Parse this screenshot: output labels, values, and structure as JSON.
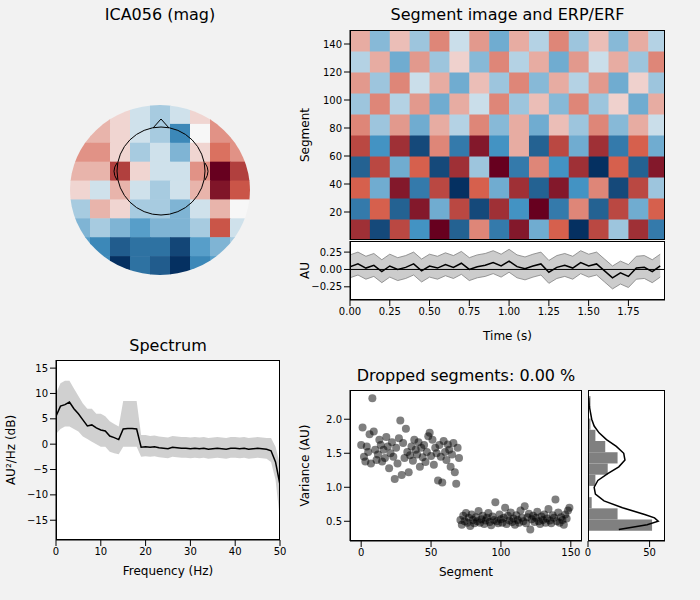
{
  "chart_data": [
    {
      "type": "heatmap",
      "title": "ICA056 (mag)",
      "tick_labels": false,
      "cells": [
        [
          0.1,
          0.2,
          0.1,
          -0.1,
          -0.2,
          -0.1,
          0.1,
          0.3,
          0.2
        ],
        [
          0.2,
          0.2,
          0.1,
          -0.1,
          -0.2,
          -0.5,
          0,
          0.3,
          0.3
        ],
        [
          0.3,
          0.3,
          0.1,
          -0.2,
          -0.1,
          -0.3,
          0.1,
          0.4,
          0.3
        ],
        [
          0.2,
          0.2,
          0.6,
          0.1,
          -0.1,
          -0.1,
          0.3,
          0.9,
          0.6
        ],
        [
          0.1,
          -0.1,
          0.2,
          -0.1,
          -0.2,
          -0.1,
          0.2,
          0.8,
          0.5
        ],
        [
          -0.2,
          0.2,
          0.1,
          -0.2,
          -0.2,
          -0.3,
          -0.1,
          0.2,
          0
        ],
        [
          -0.3,
          -0.2,
          -0.3,
          -0.4,
          -0.3,
          -0.3,
          -0.2,
          0.5,
          -0.1
        ],
        [
          -0.4,
          -0.5,
          -0.7,
          -0.6,
          -0.6,
          -0.8,
          -0.4,
          -0.3,
          -0.2
        ],
        [
          -0.3,
          -0.5,
          -0.9,
          -0.6,
          -0.7,
          -0.9,
          -0.5,
          -0.4,
          -0.2
        ]
      ]
    },
    {
      "type": "heatmap",
      "title": "Segment image and ERP/ERF",
      "ylabel": "Segment",
      "tick_labels": "y",
      "x": [
        0.0625,
        0.1875,
        0.3125,
        0.4375,
        0.5625,
        0.6875,
        0.8125,
        0.9375,
        1.0625,
        1.1875,
        1.3125,
        1.4375,
        1.5625,
        1.6875,
        1.8125,
        1.9375
      ],
      "y": [
        7.5,
        22.5,
        37.5,
        52.5,
        67.5,
        82.5,
        97.5,
        112.5,
        127.5,
        142.5
      ],
      "cells": [
        [
          0.6,
          -0.7,
          0.5,
          -0.4,
          0.8,
          -0.6,
          0.3,
          -0.5,
          0.7,
          -0.3,
          0.4,
          -0.8,
          0.5,
          -0.2,
          0.6,
          -0.5
        ],
        [
          -0.5,
          0.4,
          -0.6,
          0.7,
          -0.3,
          0.5,
          -0.7,
          0.6,
          -0.4,
          0.8,
          -0.5,
          0.3,
          -0.6,
          0.5,
          -0.3,
          0.4
        ],
        [
          0.4,
          -0.3,
          0.7,
          -0.5,
          0.5,
          -0.8,
          0.4,
          -0.3,
          0.6,
          -0.6,
          0.7,
          -0.4,
          0.3,
          -0.7,
          0.5,
          -0.2
        ],
        [
          -0.6,
          0.5,
          -0.3,
          0.4,
          -0.7,
          0.6,
          -0.2,
          0.8,
          -0.5,
          0.3,
          -0.4,
          0.6,
          -0.8,
          0.4,
          -0.6,
          0.7
        ],
        [
          0.5,
          -0.4,
          0.6,
          -0.7,
          0.3,
          -0.5,
          0.7,
          -0.4,
          0.2,
          -0.6,
          0.5,
          -0.3,
          0.6,
          -0.5,
          0.4,
          -0.3
        ],
        [
          0.3,
          -0.2,
          0.25,
          -0.3,
          0.2,
          -0.15,
          0.3,
          -0.25,
          0.2,
          -0.3,
          0.15,
          -0.2,
          0.3,
          -0.25,
          0.2,
          -0.1
        ],
        [
          -0.2,
          0.3,
          -0.15,
          0.25,
          -0.3,
          0.2,
          -0.1,
          0.3,
          -0.2,
          0.15,
          -0.25,
          0.3,
          -0.2,
          0.1,
          -0.3,
          0.2
        ],
        [
          0.25,
          -0.2,
          0.3,
          -0.1,
          0.2,
          -0.3,
          0.15,
          -0.2,
          0.3,
          -0.25,
          0.2,
          -0.15,
          0.25,
          -0.3,
          0.1,
          -0.2
        ],
        [
          -0.15,
          0.2,
          -0.3,
          0.25,
          -0.2,
          0.1,
          -0.25,
          0.3,
          -0.15,
          0.2,
          -0.3,
          0.25,
          -0.1,
          0.2,
          -0.2,
          0.3
        ],
        [
          0.2,
          -0.25,
          0.15,
          -0.2,
          0.3,
          -0.1,
          0.25,
          -0.3,
          0.2,
          -0.15,
          0.3,
          -0.2,
          0.15,
          -0.25,
          0.2,
          -0.15
        ]
      ],
      "xlim": [
        0,
        1.98
      ],
      "ylim": [
        0,
        150
      ],
      "yticks": [
        20,
        40,
        60,
        80,
        100,
        120,
        140
      ]
    },
    {
      "type": "line",
      "xlabel": "Time (s)",
      "ylabel": "AU",
      "color": "#000000",
      "x": [
        0,
        0.05,
        0.1,
        0.15,
        0.2,
        0.25,
        0.3,
        0.35,
        0.4,
        0.45,
        0.5,
        0.55,
        0.6,
        0.65,
        0.7,
        0.75,
        0.8,
        0.85,
        0.9,
        0.95,
        1.0,
        1.05,
        1.1,
        1.15,
        1.2,
        1.25,
        1.3,
        1.35,
        1.4,
        1.45,
        1.5,
        1.55,
        1.6,
        1.65,
        1.7,
        1.75,
        1.8,
        1.85,
        1.9,
        1.95
      ],
      "values": [
        0.04,
        0.08,
        0.02,
        0.06,
        -0.03,
        0.05,
        0.0,
        0.03,
        0.08,
        -0.02,
        0.05,
        0.02,
        0.07,
        0.03,
        0.09,
        0.0,
        0.04,
        0.06,
        0.1,
        0.05,
        0.12,
        0.04,
        0.01,
        0.05,
        0.08,
        -0.04,
        0.03,
        0.06,
        0.02,
        0.1,
        0.05,
        0.08,
        -0.02,
        -0.12,
        -0.05,
        -0.1,
        0.02,
        0.03,
        -0.03,
        0.05
      ],
      "lower": [
        -0.12,
        -0.08,
        -0.14,
        -0.1,
        -0.19,
        -0.11,
        -0.16,
        -0.13,
        -0.08,
        -0.18,
        -0.11,
        -0.14,
        -0.09,
        -0.13,
        -0.07,
        -0.16,
        -0.12,
        -0.1,
        -0.06,
        -0.11,
        -0.04,
        -0.12,
        -0.15,
        -0.11,
        -0.08,
        -0.2,
        -0.13,
        -0.1,
        -0.14,
        -0.06,
        -0.11,
        -0.08,
        -0.18,
        -0.28,
        -0.21,
        -0.26,
        -0.14,
        -0.13,
        -0.19,
        -0.11
      ],
      "upper": [
        0.21,
        0.25,
        0.19,
        0.23,
        0.14,
        0.22,
        0.17,
        0.2,
        0.25,
        0.15,
        0.22,
        0.19,
        0.24,
        0.2,
        0.26,
        0.17,
        0.21,
        0.23,
        0.27,
        0.22,
        0.29,
        0.21,
        0.18,
        0.22,
        0.25,
        0.13,
        0.2,
        0.23,
        0.19,
        0.27,
        0.22,
        0.25,
        0.15,
        0.05,
        0.12,
        0.07,
        0.19,
        0.2,
        0.14,
        0.22
      ],
      "xlim": [
        0,
        1.98
      ],
      "ylim": [
        -0.44,
        0.41
      ],
      "xticks": [
        {
          "value": 0,
          "label": "0.00"
        },
        0.25,
        {
          "value": 0.5,
          "label": "0.50"
        },
        0.75,
        {
          "value": 1,
          "label": "1.00"
        },
        1.25,
        {
          "value": 1.5,
          "label": "1.50"
        },
        1.75
      ],
      "yticks": [
        {
          "value": -0.25,
          "label": "−0.25"
        },
        {
          "value": 0,
          "label": "0.00"
        },
        0.25
      ]
    },
    {
      "type": "line",
      "title": "Spectrum",
      "xlabel": "Frequency (Hz)",
      "ylabel": "AU²/Hz (dB)",
      "color": "#000000",
      "x": [
        0,
        1,
        2,
        3,
        4,
        5,
        6,
        7,
        8,
        9,
        10,
        11,
        12,
        13,
        14,
        15,
        16,
        17,
        18,
        19,
        20,
        21,
        22,
        23,
        24,
        25,
        26,
        27,
        28,
        29,
        30,
        31,
        32,
        33,
        34,
        35,
        36,
        37,
        38,
        39,
        40,
        41,
        42,
        43,
        44,
        45,
        46,
        47,
        48,
        49,
        50
      ],
      "values": [
        5.5,
        7.5,
        7.8,
        8.3,
        7.0,
        6.0,
        4.8,
        3.6,
        3.8,
        3.2,
        2.8,
        2.6,
        1.6,
        1.3,
        0.9,
        3.0,
        3.1,
        3.1,
        3.0,
        -0.6,
        -0.5,
        -0.6,
        -0.5,
        -0.7,
        -0.8,
        -0.9,
        -0.6,
        -0.7,
        -0.8,
        -0.8,
        -0.9,
        -0.8,
        -0.9,
        -0.8,
        -1.0,
        -0.9,
        -0.8,
        -0.9,
        -1.0,
        -0.8,
        -0.8,
        -0.9,
        -0.8,
        -1.0,
        -0.9,
        -0.8,
        -0.9,
        -1.0,
        -1.3,
        -3.5,
        -8.0
      ],
      "lower": [
        2,
        3,
        3.5,
        3.5,
        3,
        2.5,
        1.5,
        1,
        0.5,
        0,
        -0.5,
        -0.5,
        -1.5,
        -1.8,
        -2,
        -0.5,
        -0.5,
        -0.5,
        -0.5,
        -2.5,
        -2.4,
        -2.5,
        -2.4,
        -2.6,
        -2.7,
        -2.8,
        -2.5,
        -2.6,
        -2.7,
        -2.7,
        -2.8,
        -2.7,
        -2.8,
        -2.7,
        -2.9,
        -2.8,
        -2.7,
        -2.8,
        -2.9,
        -2.7,
        -2.7,
        -2.8,
        -2.7,
        -2.9,
        -2.8,
        -2.7,
        -2.8,
        -2.9,
        -3.5,
        -7,
        -15
      ],
      "upper": [
        10,
        12,
        12.5,
        12.5,
        11,
        9.5,
        8,
        7,
        7,
        6,
        6,
        5.5,
        4.5,
        4,
        3.5,
        8.5,
        8.5,
        8.5,
        8.5,
        1.8,
        1.8,
        1.6,
        1.7,
        1.5,
        1.4,
        1.3,
        1.6,
        1.5,
        1.4,
        1.4,
        1.3,
        1.4,
        1.3,
        1.4,
        1.2,
        1.3,
        1.4,
        1.3,
        1.2,
        1.4,
        1.4,
        1.3,
        1.4,
        1.2,
        1.3,
        1.4,
        1.3,
        1.2,
        1.2,
        -0.5,
        -4
      ],
      "xlim": [
        0,
        50
      ],
      "ylim": [
        -18.9,
        16.6
      ],
      "xticks": [
        0,
        10,
        20,
        30,
        40,
        50
      ],
      "yticks": [
        {
          "value": -15,
          "label": "−15"
        },
        {
          "value": -10,
          "label": "−10"
        },
        {
          "value": -5,
          "label": "−5"
        },
        0,
        5,
        10,
        15
      ]
    },
    {
      "type": "scatter",
      "title": "Dropped segments: 0.00 %",
      "xlabel": "Segment",
      "ylabel": "Variance (AU)",
      "color": "#000000",
      "x": [
        0,
        1,
        2,
        3,
        4,
        5,
        6,
        7,
        8,
        9,
        10,
        11,
        12,
        13,
        14,
        15,
        16,
        17,
        18,
        19,
        20,
        21,
        22,
        23,
        24,
        25,
        26,
        27,
        28,
        29,
        30,
        31,
        32,
        33,
        34,
        35,
        36,
        37,
        38,
        39,
        40,
        41,
        42,
        43,
        44,
        45,
        46,
        47,
        48,
        49,
        50,
        51,
        52,
        53,
        54,
        55,
        56,
        57,
        58,
        59,
        60,
        61,
        62,
        63,
        64,
        65,
        66,
        67,
        68,
        69,
        70,
        71,
        72,
        73,
        74,
        75,
        76,
        77,
        78,
        79,
        80,
        81,
        82,
        83,
        84,
        85,
        86,
        87,
        88,
        89,
        90,
        91,
        92,
        93,
        94,
        95,
        96,
        97,
        98,
        99,
        100,
        101,
        102,
        103,
        104,
        105,
        106,
        107,
        108,
        109,
        110,
        111,
        112,
        113,
        114,
        115,
        116,
        117,
        118,
        119,
        120,
        121,
        122,
        123,
        124,
        125,
        126,
        127,
        128,
        129,
        130,
        131,
        132,
        133,
        134,
        135,
        136,
        137,
        138,
        139,
        140,
        141,
        142,
        143,
        144,
        145,
        146,
        147,
        148,
        149
      ],
      "values": [
        1.62,
        1.88,
        1.45,
        1.38,
        1.6,
        1.52,
        1.78,
        1.35,
        2.31,
        1.82,
        1.55,
        1.4,
        1.48,
        1.7,
        1.62,
        1.38,
        1.55,
        1.43,
        1.74,
        1.6,
        1.28,
        1.5,
        1.66,
        1.45,
        1.12,
        1.58,
        1.35,
        1.72,
        1.98,
        1.18,
        1.65,
        1.43,
        1.86,
        1.52,
        1.22,
        1.47,
        1.6,
        1.39,
        1.7,
        1.55,
        1.48,
        1.66,
        1.3,
        1.58,
        1.44,
        1.62,
        1.37,
        1.52,
        1.75,
        1.8,
        1.46,
        1.7,
        1.33,
        1.58,
        1.5,
        1.1,
        1.62,
        1.45,
        1.07,
        1.68,
        1.52,
        1.4,
        1.63,
        1.55,
        1.3,
        1.48,
        1.65,
        1.22,
        1.05,
        1.58,
        1.43,
        0.52,
        0.45,
        0.58,
        0.5,
        0.62,
        0.48,
        0.55,
        0.43,
        0.6,
        0.52,
        0.47,
        0.56,
        0.5,
        0.65,
        0.48,
        0.53,
        0.58,
        0.46,
        0.51,
        0.55,
        0.62,
        0.49,
        0.44,
        0.57,
        0.52,
        0.78,
        0.5,
        0.47,
        0.6,
        0.53,
        0.48,
        0.55,
        0.7,
        0.46,
        0.58,
        0.51,
        0.63,
        0.49,
        0.54,
        0.45,
        0.59,
        0.52,
        0.48,
        0.66,
        0.55,
        0.5,
        0.72,
        0.47,
        0.56,
        0.61,
        0.38,
        0.53,
        0.58,
        0.49,
        0.55,
        0.64,
        0.5,
        0.46,
        0.57,
        0.52,
        0.6,
        0.48,
        0.54,
        0.68,
        0.51,
        0.47,
        0.59,
        0.55,
        0.82,
        0.5,
        0.63,
        0.48,
        0.56,
        0.52,
        0.45,
        0.6,
        0.54,
        0.66,
        0.7
      ],
      "xlim": [
        -8,
        158
      ],
      "ylim": [
        0.21,
        2.43
      ],
      "xticks": [
        0,
        50,
        100,
        150
      ],
      "yticks": [
        0.5,
        {
          "value": 1,
          "label": "1.0"
        },
        1.5,
        {
          "value": 2,
          "label": "2.0"
        }
      ]
    },
    {
      "type": "histogram",
      "orientation": "horizontal",
      "color": "#808080",
      "tick_labels": "x",
      "bins": [
        0.36,
        0.525,
        0.69,
        0.855,
        1.02,
        1.185,
        1.35,
        1.515,
        1.68,
        1.845,
        2.01,
        2.175,
        2.34
      ],
      "counts": [
        52,
        24,
        3,
        1,
        6,
        16,
        24,
        14,
        6,
        2,
        0,
        2
      ],
      "kde": {
        "x": [
          25,
          48,
          57,
          54,
          46,
          28,
          13,
          6,
          5,
          8,
          16,
          25,
          30,
          29,
          23,
          15,
          9,
          5,
          3,
          2,
          1,
          0.5
        ],
        "y": [
          0.38,
          0.45,
          0.5,
          0.55,
          0.6,
          0.7,
          0.8,
          0.9,
          1.0,
          1.1,
          1.2,
          1.3,
          1.4,
          1.5,
          1.6,
          1.7,
          1.8,
          1.9,
          2.0,
          2.1,
          2.2,
          2.31
        ]
      },
      "xlim": [
        0,
        62.5
      ],
      "xticks": [
        0,
        50
      ],
      "ylim": [
        0.21,
        2.43
      ]
    }
  ]
}
